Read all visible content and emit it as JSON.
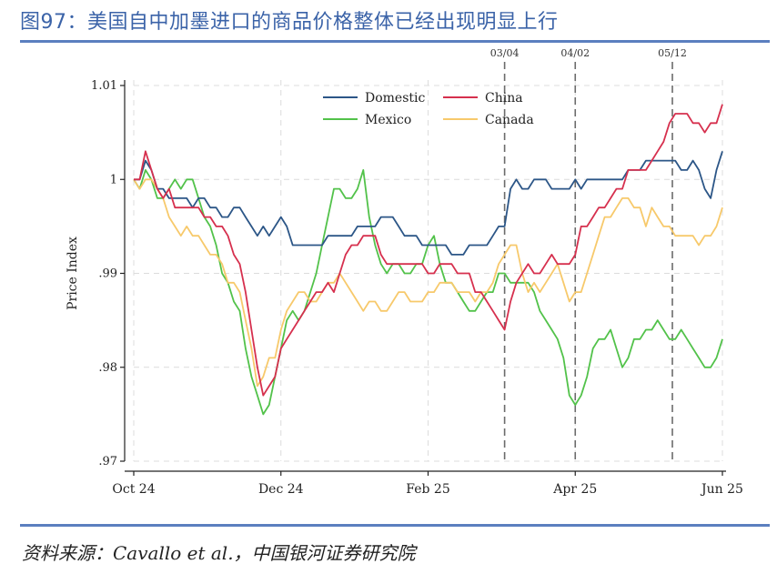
{
  "header": {
    "title": "图97：美国自中加墨进口的商品价格整体已经出现明显上行"
  },
  "footer": {
    "source": "资料来源：Cavallo et al.，中国银河证券研究院"
  },
  "chart_data": {
    "type": "line",
    "title": "",
    "xlabel": "",
    "ylabel": "Price Index",
    "xlim": [
      0,
      100
    ],
    "ylim": [
      0.97,
      1.01
    ],
    "yticks": [
      0.97,
      0.98,
      0.99,
      1,
      1.01
    ],
    "ytick_labels": [
      ".97",
      ".98",
      ".99",
      "1",
      "1.01"
    ],
    "xticks": [
      0,
      25,
      50,
      75,
      100
    ],
    "xtick_labels": [
      "Oct 24",
      "Dec 24",
      "Feb 25",
      "Apr 25",
      "Jun 25"
    ],
    "grid": true,
    "legend_position": "top-center",
    "annotations": [
      {
        "label": "03/04",
        "x": 63
      },
      {
        "label": "04/02",
        "x": 75
      },
      {
        "label": "05/12",
        "x": 91.5
      }
    ],
    "series": [
      {
        "name": "Domestic",
        "color": "#2c5687",
        "x": [
          0,
          1,
          2,
          3,
          4,
          5,
          6,
          7,
          8,
          9,
          10,
          11,
          12,
          13,
          14,
          15,
          16,
          17,
          18,
          19,
          20,
          21,
          22,
          23,
          24,
          25,
          26,
          27,
          28,
          29,
          30,
          31,
          32,
          33,
          34,
          35,
          36,
          37,
          38,
          39,
          40,
          41,
          42,
          43,
          44,
          45,
          46,
          47,
          48,
          49,
          50,
          51,
          52,
          53,
          54,
          55,
          56,
          57,
          58,
          59,
          60,
          61,
          62,
          63,
          64,
          65,
          66,
          67,
          68,
          69,
          70,
          71,
          72,
          73,
          74,
          75,
          76,
          77,
          78,
          79,
          80,
          81,
          82,
          83,
          84,
          85,
          86,
          87,
          88,
          89,
          90,
          91,
          92,
          93,
          94,
          95,
          96,
          97,
          98,
          99,
          100
        ],
        "values": [
          1,
          1,
          1.002,
          1.001,
          0.999,
          0.999,
          0.998,
          0.998,
          0.998,
          0.998,
          0.997,
          0.998,
          0.998,
          0.997,
          0.997,
          0.996,
          0.996,
          0.997,
          0.997,
          0.996,
          0.995,
          0.994,
          0.995,
          0.994,
          0.995,
          0.996,
          0.995,
          0.993,
          0.993,
          0.993,
          0.993,
          0.993,
          0.993,
          0.994,
          0.994,
          0.994,
          0.994,
          0.994,
          0.995,
          0.995,
          0.995,
          0.995,
          0.996,
          0.996,
          0.996,
          0.995,
          0.994,
          0.994,
          0.994,
          0.993,
          0.993,
          0.993,
          0.993,
          0.993,
          0.992,
          0.992,
          0.992,
          0.993,
          0.993,
          0.993,
          0.993,
          0.994,
          0.995,
          0.995,
          0.999,
          1,
          0.999,
          0.999,
          1,
          1,
          1,
          0.999,
          0.999,
          0.999,
          0.999,
          1,
          0.999,
          1,
          1,
          1,
          1,
          1,
          1,
          1,
          1.001,
          1.001,
          1.001,
          1.002,
          1.002,
          1.002,
          1.002,
          1.002,
          1.002,
          1.001,
          1.001,
          1.002,
          1.001,
          0.999,
          0.998,
          1.001,
          1.003
        ]
      },
      {
        "name": "China",
        "color": "#d6304e",
        "x": [
          0,
          1,
          2,
          3,
          4,
          5,
          6,
          7,
          8,
          9,
          10,
          11,
          12,
          13,
          14,
          15,
          16,
          17,
          18,
          19,
          20,
          21,
          22,
          23,
          24,
          25,
          26,
          27,
          28,
          29,
          30,
          31,
          32,
          33,
          34,
          35,
          36,
          37,
          38,
          39,
          40,
          41,
          42,
          43,
          44,
          45,
          46,
          47,
          48,
          49,
          50,
          51,
          52,
          53,
          54,
          55,
          56,
          57,
          58,
          59,
          60,
          61,
          62,
          63,
          64,
          65,
          66,
          67,
          68,
          69,
          70,
          71,
          72,
          73,
          74,
          75,
          76,
          77,
          78,
          79,
          80,
          81,
          82,
          83,
          84,
          85,
          86,
          87,
          88,
          89,
          90,
          91,
          92,
          93,
          94,
          95,
          96,
          97,
          98,
          99,
          100
        ],
        "values": [
          1,
          1,
          1.003,
          1.001,
          0.999,
          0.998,
          0.999,
          0.997,
          0.997,
          0.997,
          0.997,
          0.997,
          0.996,
          0.996,
          0.995,
          0.995,
          0.994,
          0.992,
          0.991,
          0.988,
          0.984,
          0.98,
          0.977,
          0.978,
          0.979,
          0.982,
          0.983,
          0.984,
          0.985,
          0.986,
          0.987,
          0.988,
          0.988,
          0.989,
          0.988,
          0.99,
          0.992,
          0.993,
          0.993,
          0.994,
          0.994,
          0.994,
          0.992,
          0.991,
          0.991,
          0.991,
          0.991,
          0.991,
          0.991,
          0.991,
          0.99,
          0.99,
          0.991,
          0.991,
          0.991,
          0.99,
          0.99,
          0.99,
          0.988,
          0.988,
          0.987,
          0.986,
          0.985,
          0.984,
          0.987,
          0.989,
          0.99,
          0.991,
          0.99,
          0.99,
          0.991,
          0.992,
          0.991,
          0.991,
          0.991,
          0.992,
          0.995,
          0.995,
          0.996,
          0.997,
          0.997,
          0.998,
          0.999,
          0.999,
          1.001,
          1.001,
          1.001,
          1.001,
          1.002,
          1.003,
          1.004,
          1.006,
          1.007,
          1.007,
          1.007,
          1.006,
          1.006,
          1.005,
          1.006,
          1.006,
          1.008
        ]
      },
      {
        "name": "Mexico",
        "color": "#52c24a",
        "x": [
          0,
          1,
          2,
          3,
          4,
          5,
          6,
          7,
          8,
          9,
          10,
          11,
          12,
          13,
          14,
          15,
          16,
          17,
          18,
          19,
          20,
          21,
          22,
          23,
          24,
          25,
          26,
          27,
          28,
          29,
          30,
          31,
          32,
          33,
          34,
          35,
          36,
          37,
          38,
          39,
          40,
          41,
          42,
          43,
          44,
          45,
          46,
          47,
          48,
          49,
          50,
          51,
          52,
          53,
          54,
          55,
          56,
          57,
          58,
          59,
          60,
          61,
          62,
          63,
          64,
          65,
          66,
          67,
          68,
          69,
          70,
          71,
          72,
          73,
          74,
          75,
          76,
          77,
          78,
          79,
          80,
          81,
          82,
          83,
          84,
          85,
          86,
          87,
          88,
          89,
          90,
          91,
          92,
          93,
          94,
          95,
          96,
          97,
          98,
          99,
          100
        ],
        "values": [
          1,
          0.999,
          1.001,
          1,
          0.998,
          0.998,
          0.999,
          1,
          0.999,
          1,
          1,
          0.998,
          0.996,
          0.995,
          0.993,
          0.99,
          0.989,
          0.987,
          0.986,
          0.982,
          0.979,
          0.977,
          0.975,
          0.976,
          0.979,
          0.982,
          0.985,
          0.986,
          0.985,
          0.986,
          0.988,
          0.99,
          0.993,
          0.996,
          0.999,
          0.999,
          0.998,
          0.998,
          0.999,
          1.001,
          0.996,
          0.993,
          0.991,
          0.99,
          0.991,
          0.991,
          0.99,
          0.99,
          0.991,
          0.991,
          0.993,
          0.994,
          0.991,
          0.989,
          0.989,
          0.988,
          0.987,
          0.986,
          0.986,
          0.987,
          0.988,
          0.988,
          0.99,
          0.99,
          0.989,
          0.989,
          0.989,
          0.989,
          0.988,
          0.986,
          0.985,
          0.984,
          0.983,
          0.981,
          0.977,
          0.976,
          0.977,
          0.979,
          0.982,
          0.983,
          0.983,
          0.984,
          0.982,
          0.98,
          0.981,
          0.983,
          0.983,
          0.984,
          0.984,
          0.985,
          0.984,
          0.983,
          0.983,
          0.984,
          0.983,
          0.982,
          0.981,
          0.98,
          0.98,
          0.981,
          0.983
        ]
      },
      {
        "name": "Canada",
        "color": "#f7c96b",
        "x": [
          0,
          1,
          2,
          3,
          4,
          5,
          6,
          7,
          8,
          9,
          10,
          11,
          12,
          13,
          14,
          15,
          16,
          17,
          18,
          19,
          20,
          21,
          22,
          23,
          24,
          25,
          26,
          27,
          28,
          29,
          30,
          31,
          32,
          33,
          34,
          35,
          36,
          37,
          38,
          39,
          40,
          41,
          42,
          43,
          44,
          45,
          46,
          47,
          48,
          49,
          50,
          51,
          52,
          53,
          54,
          55,
          56,
          57,
          58,
          59,
          60,
          61,
          62,
          63,
          64,
          65,
          66,
          67,
          68,
          69,
          70,
          71,
          72,
          73,
          74,
          75,
          76,
          77,
          78,
          79,
          80,
          81,
          82,
          83,
          84,
          85,
          86,
          87,
          88,
          89,
          90,
          91,
          92,
          93,
          94,
          95,
          96,
          97,
          98,
          99,
          100
        ],
        "values": [
          1,
          0.999,
          1,
          1,
          0.999,
          0.998,
          0.996,
          0.995,
          0.994,
          0.995,
          0.994,
          0.994,
          0.993,
          0.992,
          0.992,
          0.991,
          0.989,
          0.989,
          0.988,
          0.985,
          0.982,
          0.978,
          0.979,
          0.981,
          0.981,
          0.984,
          0.986,
          0.987,
          0.988,
          0.988,
          0.987,
          0.987,
          0.988,
          0.989,
          0.989,
          0.99,
          0.989,
          0.988,
          0.987,
          0.986,
          0.987,
          0.987,
          0.986,
          0.986,
          0.987,
          0.988,
          0.988,
          0.987,
          0.987,
          0.987,
          0.988,
          0.988,
          0.989,
          0.989,
          0.989,
          0.988,
          0.988,
          0.988,
          0.987,
          0.988,
          0.988,
          0.989,
          0.991,
          0.992,
          0.993,
          0.993,
          0.99,
          0.988,
          0.989,
          0.988,
          0.989,
          0.99,
          0.991,
          0.989,
          0.987,
          0.988,
          0.988,
          0.99,
          0.992,
          0.994,
          0.996,
          0.996,
          0.997,
          0.998,
          0.998,
          0.997,
          0.997,
          0.995,
          0.997,
          0.996,
          0.995,
          0.995,
          0.994,
          0.994,
          0.994,
          0.994,
          0.993,
          0.994,
          0.994,
          0.995,
          0.997
        ]
      }
    ]
  }
}
